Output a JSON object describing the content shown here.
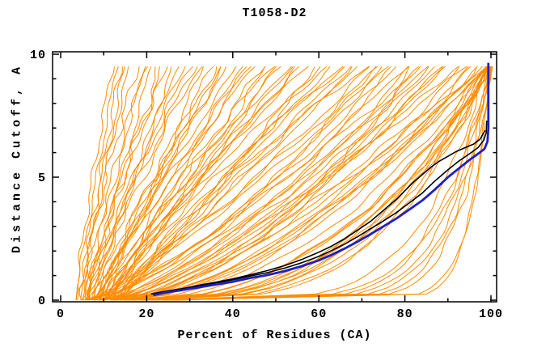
{
  "chart_data": {
    "type": "line",
    "title": "T1058-D2",
    "xlabel": "Percent of Residues (CA)",
    "ylabel": "Distance Cutoff, A",
    "xlim": [
      0,
      100
    ],
    "ylim": [
      0,
      10
    ],
    "x_major_ticks": [
      0,
      20,
      40,
      60,
      80,
      100
    ],
    "x_tick_labels": [
      "0",
      "20",
      "40",
      "60",
      "80",
      "100"
    ],
    "x_minor_step": 10,
    "y_major_ticks": [
      0,
      5,
      10
    ],
    "y_tick_labels": [
      "0",
      "5",
      "10"
    ],
    "y_minor_step": 1,
    "grid": false,
    "legend": "none",
    "colors": {
      "ensemble": "#ff8c00",
      "highlight_blue": "#1e1ecb",
      "highlight_black": "#000000",
      "axis": "#000000",
      "background": "#ffffff"
    },
    "highlight_series": [
      {
        "name": "model-black-1",
        "color": "#000000",
        "width": 1.6,
        "points": [
          [
            21,
            0.25
          ],
          [
            24,
            0.35
          ],
          [
            28,
            0.46
          ],
          [
            32,
            0.58
          ],
          [
            36,
            0.7
          ],
          [
            40,
            0.83
          ],
          [
            44,
            0.98
          ],
          [
            48,
            1.12
          ],
          [
            52,
            1.3
          ],
          [
            56,
            1.52
          ],
          [
            60,
            1.78
          ],
          [
            63,
            2.02
          ],
          [
            66,
            2.28
          ],
          [
            69,
            2.58
          ],
          [
            72,
            2.9
          ],
          [
            75,
            3.22
          ],
          [
            78,
            3.56
          ],
          [
            81,
            3.95
          ],
          [
            84,
            4.35
          ],
          [
            87,
            4.85
          ],
          [
            90,
            5.3
          ],
          [
            92.5,
            5.65
          ],
          [
            95,
            5.95
          ],
          [
            97,
            6.2
          ],
          [
            98.3,
            6.5
          ],
          [
            98.9,
            6.8
          ],
          [
            99.0,
            7.3
          ]
        ]
      },
      {
        "name": "model-black-2",
        "color": "#000000",
        "width": 1.6,
        "points": [
          [
            21,
            0.25
          ],
          [
            24,
            0.35
          ],
          [
            28,
            0.46
          ],
          [
            32,
            0.6
          ],
          [
            36,
            0.73
          ],
          [
            40,
            0.87
          ],
          [
            44,
            1.03
          ],
          [
            48,
            1.2
          ],
          [
            52,
            1.4
          ],
          [
            56,
            1.65
          ],
          [
            60,
            1.95
          ],
          [
            63,
            2.2
          ],
          [
            66,
            2.5
          ],
          [
            69,
            2.85
          ],
          [
            72,
            3.2
          ],
          [
            74,
            3.5
          ],
          [
            76,
            3.8
          ],
          [
            78,
            4.1
          ],
          [
            80,
            4.45
          ],
          [
            82,
            4.8
          ],
          [
            84,
            5.1
          ],
          [
            86,
            5.4
          ],
          [
            88,
            5.65
          ],
          [
            90,
            5.85
          ],
          [
            92,
            6.05
          ],
          [
            94,
            6.2
          ],
          [
            96,
            6.35
          ],
          [
            97.5,
            6.55
          ],
          [
            98.6,
            6.9
          ]
        ]
      },
      {
        "name": "model-blue-best",
        "color": "#1e1ecb",
        "width": 2.8,
        "points": [
          [
            21.5,
            0.2
          ],
          [
            24,
            0.3
          ],
          [
            28,
            0.4
          ],
          [
            32,
            0.52
          ],
          [
            36,
            0.63
          ],
          [
            40,
            0.75
          ],
          [
            44,
            0.9
          ],
          [
            48,
            1.02
          ],
          [
            52,
            1.18
          ],
          [
            56,
            1.38
          ],
          [
            60,
            1.62
          ],
          [
            63,
            1.85
          ],
          [
            66,
            2.1
          ],
          [
            69,
            2.38
          ],
          [
            72,
            2.68
          ],
          [
            75,
            3.0
          ],
          [
            78,
            3.32
          ],
          [
            81,
            3.68
          ],
          [
            84,
            4.05
          ],
          [
            87,
            4.5
          ],
          [
            90,
            5.0
          ],
          [
            92.5,
            5.35
          ],
          [
            95,
            5.7
          ],
          [
            97,
            5.95
          ],
          [
            98.5,
            6.15
          ],
          [
            99.2,
            6.45
          ],
          [
            99.4,
            7.0
          ],
          [
            99.4,
            9.65
          ]
        ]
      }
    ],
    "ensemble_curves": {
      "description": "orange model curves; x(y) = x0 + (x1-x0)*(y/y_max)^c + wiggle",
      "color": "#ff8c00",
      "width": 1,
      "y_max": 9.5,
      "y_step": 0.25,
      "params_format": [
        "x0_percent_at_y0",
        "x1_percent_at_ymax",
        "shape_exponent",
        "wiggle_amp",
        "wiggle_freq",
        "wiggle_phase"
      ],
      "params": [
        [
          3.2,
          13,
          1.0,
          0.3,
          2.0,
          1.0
        ],
        [
          3.5,
          12,
          1.2,
          0.4,
          2.1,
          0.5
        ],
        [
          4.5,
          15,
          1.1,
          0.5,
          1.7,
          2.1
        ],
        [
          5,
          18,
          1.3,
          0.6,
          2.4,
          4.0
        ],
        [
          5.5,
          21,
          0.95,
          0.4,
          1.9,
          1.2
        ],
        [
          6,
          24,
          1.15,
          0.7,
          2.2,
          3.3
        ],
        [
          6.5,
          27,
          1.0,
          0.5,
          1.6,
          5.1
        ],
        [
          7,
          30,
          1.25,
          0.6,
          2.0,
          0.8
        ],
        [
          7.5,
          33,
          0.9,
          0.4,
          2.5,
          2.6
        ],
        [
          8,
          36,
          1.1,
          0.7,
          1.8,
          4.4
        ],
        [
          8.5,
          39,
          1.3,
          0.5,
          2.3,
          1.5
        ],
        [
          9,
          42,
          1.0,
          0.6,
          1.7,
          3.7
        ],
        [
          9.5,
          45,
          1.2,
          0.4,
          2.1,
          5.5
        ],
        [
          10,
          48,
          0.95,
          0.7,
          1.9,
          0.3
        ],
        [
          10.5,
          51,
          1.15,
          0.5,
          2.4,
          2.2
        ],
        [
          11,
          54,
          1.05,
          0.6,
          1.6,
          4.1
        ],
        [
          11.5,
          57,
          1.25,
          0.4,
          2.0,
          1.0
        ],
        [
          12,
          60,
          0.9,
          0.7,
          2.5,
          3.0
        ],
        [
          12.5,
          63,
          1.1,
          0.5,
          1.8,
          5.2
        ],
        [
          13,
          66,
          1.3,
          0.6,
          2.2,
          0.6
        ],
        [
          13.5,
          69,
          1.0,
          0.4,
          1.7,
          2.8
        ],
        [
          4.2,
          14,
          1.05,
          0.5,
          2.3,
          4.6
        ],
        [
          5.2,
          20,
          1.2,
          0.6,
          1.9,
          1.4
        ],
        [
          6.2,
          26,
          0.95,
          0.4,
          2.1,
          3.5
        ],
        [
          7.2,
          32,
          1.15,
          0.7,
          1.6,
          5.4
        ],
        [
          8.2,
          38,
          1.05,
          0.5,
          2.4,
          0.9
        ],
        [
          9.2,
          44,
          1.25,
          0.6,
          1.8,
          2.5
        ],
        [
          10.2,
          50,
          0.9,
          0.4,
          2.2,
          4.3
        ],
        [
          11.2,
          56,
          1.1,
          0.7,
          1.7,
          1.1
        ],
        [
          12.2,
          62,
          1.3,
          0.5,
          2.0,
          3.2
        ],
        [
          13.2,
          68,
          1.0,
          0.6,
          2.5,
          5.0
        ],
        [
          4.8,
          16,
          1.15,
          0.4,
          1.9,
          0.2
        ],
        [
          5.8,
          23,
          1.05,
          0.7,
          2.3,
          2.0
        ],
        [
          6.8,
          29,
          1.25,
          0.5,
          1.6,
          3.9
        ],
        [
          7.8,
          35,
          0.95,
          0.6,
          2.1,
          5.6
        ],
        [
          8.8,
          41,
          1.15,
          0.4,
          1.8,
          1.3
        ],
        [
          9.8,
          47,
          1.05,
          0.7,
          2.4,
          3.1
        ],
        [
          10.8,
          53,
          1.2,
          0.5,
          1.7,
          4.9
        ],
        [
          11.8,
          59,
          0.9,
          0.6,
          2.2,
          0.4
        ],
        [
          12.8,
          65,
          1.1,
          0.4,
          1.9,
          2.3
        ],
        [
          13.8,
          71,
          1.25,
          0.7,
          2.5,
          4.2
        ],
        [
          5.4,
          19,
          1.0,
          0.5,
          1.6,
          5.8
        ],
        [
          7.4,
          31,
          1.2,
          0.6,
          2.0,
          1.6
        ],
        [
          9.4,
          43,
          0.95,
          0.4,
          2.3,
          3.4
        ],
        [
          11.4,
          55,
          1.15,
          0.7,
          1.8,
          5.3
        ],
        [
          13.4,
          67,
          1.05,
          0.5,
          2.1,
          0.7
        ],
        [
          6.4,
          25,
          1.3,
          0.6,
          1.7,
          2.4
        ],
        [
          8.4,
          37,
          1.0,
          0.4,
          2.4,
          4.5
        ],
        [
          10.4,
          49,
          1.2,
          0.7,
          1.9,
          1.8
        ],
        [
          5,
          72,
          0.8,
          0.6,
          1.8,
          0.5
        ],
        [
          6,
          75,
          0.7,
          0.5,
          2.2,
          2.3
        ],
        [
          7,
          78,
          0.75,
          0.7,
          1.6,
          4.1
        ],
        [
          8,
          81,
          0.6,
          0.4,
          2.0,
          5.9
        ],
        [
          9,
          84,
          0.85,
          0.6,
          2.4,
          1.2
        ],
        [
          10,
          87,
          0.65,
          0.5,
          1.7,
          3.0
        ],
        [
          11,
          90,
          0.8,
          0.7,
          2.1,
          4.8
        ],
        [
          12,
          93,
          0.55,
          0.4,
          1.9,
          0.6
        ],
        [
          13,
          96,
          0.7,
          0.6,
          2.3,
          2.4
        ],
        [
          14,
          98,
          0.6,
          0.5,
          1.6,
          4.2
        ],
        [
          6.5,
          74,
          0.85,
          0.7,
          2.0,
          6.0
        ],
        [
          7.5,
          77,
          0.6,
          0.4,
          2.4,
          1.7
        ],
        [
          8.5,
          80,
          0.75,
          0.6,
          1.8,
          3.5
        ],
        [
          9.5,
          83,
          0.55,
          0.5,
          2.2,
          5.3
        ],
        [
          10.5,
          86,
          0.8,
          0.7,
          1.6,
          0.9
        ],
        [
          11.5,
          89,
          0.65,
          0.4,
          2.0,
          2.7
        ],
        [
          12.5,
          92,
          0.75,
          0.6,
          2.4,
          4.5
        ],
        [
          13.5,
          95,
          0.5,
          0.5,
          1.8,
          0.3
        ],
        [
          15,
          97,
          0.7,
          0.7,
          2.1,
          2.1
        ],
        [
          16,
          99,
          0.6,
          0.4,
          1.7,
          3.9
        ],
        [
          5.5,
          73,
          0.65,
          0.6,
          2.3,
          5.7
        ],
        [
          7.2,
          76,
          0.85,
          0.5,
          1.9,
          1.4
        ],
        [
          8.8,
          82,
          0.5,
          0.7,
          2.2,
          3.2
        ],
        [
          10.2,
          85,
          0.75,
          0.4,
          1.6,
          5.0
        ],
        [
          11.8,
          88,
          0.6,
          0.6,
          2.0,
          0.8
        ],
        [
          13.2,
          94,
          0.8,
          0.5,
          2.4,
          2.6
        ],
        [
          14.5,
          96.5,
          0.55,
          0.7,
          1.8,
          4.4
        ],
        [
          15.5,
          98.5,
          0.7,
          0.4,
          2.1,
          0.2
        ],
        [
          16.5,
          99,
          0.5,
          0.6,
          1.7,
          2.0
        ],
        [
          17,
          99.5,
          0.65,
          0.5,
          2.3,
          3.8
        ],
        [
          14,
          99,
          0.42,
          0.5,
          1.8,
          1.0
        ],
        [
          15,
          99.5,
          0.38,
          0.4,
          2.2,
          2.8
        ],
        [
          16,
          100,
          0.35,
          0.6,
          1.6,
          4.6
        ],
        [
          17,
          99.2,
          0.45,
          0.5,
          2.0,
          0.4
        ],
        [
          18,
          99.8,
          0.33,
          0.4,
          2.4,
          2.2
        ],
        [
          19,
          100,
          0.4,
          0.6,
          1.8,
          4.0
        ],
        [
          20,
          99.4,
          0.3,
          0.5,
          2.1,
          5.8
        ],
        [
          20.5,
          99.9,
          0.36,
          0.4,
          1.7,
          1.5
        ],
        [
          21,
          100,
          0.32,
          0.5,
          2.3,
          3.3
        ],
        [
          22,
          99.6,
          0.42,
          0.4,
          1.9,
          5.1
        ],
        [
          18.5,
          99.3,
          0.37,
          0.6,
          2.2,
          0.7
        ],
        [
          16.5,
          99.7,
          0.44,
          0.5,
          1.6,
          2.5
        ],
        [
          23,
          99.5,
          0.16,
          0.4,
          1.6,
          0.9
        ],
        [
          24,
          100,
          0.13,
          0.3,
          2.0,
          2.7
        ],
        [
          25,
          99.8,
          0.18,
          0.4,
          1.8,
          4.5
        ],
        [
          26,
          100,
          0.12,
          0.3,
          2.2,
          0.3
        ],
        [
          22,
          99,
          0.2,
          0.4,
          1.7,
          2.1
        ],
        [
          27,
          99.6,
          0.15,
          0.3,
          2.1,
          3.9
        ],
        [
          28,
          100,
          0.11,
          0.4,
          1.9,
          5.7
        ],
        [
          24,
          99.7,
          0.06,
          0.2,
          1.5,
          1.1
        ],
        [
          26,
          100,
          0.07,
          0.2,
          1.8,
          3.6
        ]
      ]
    }
  }
}
